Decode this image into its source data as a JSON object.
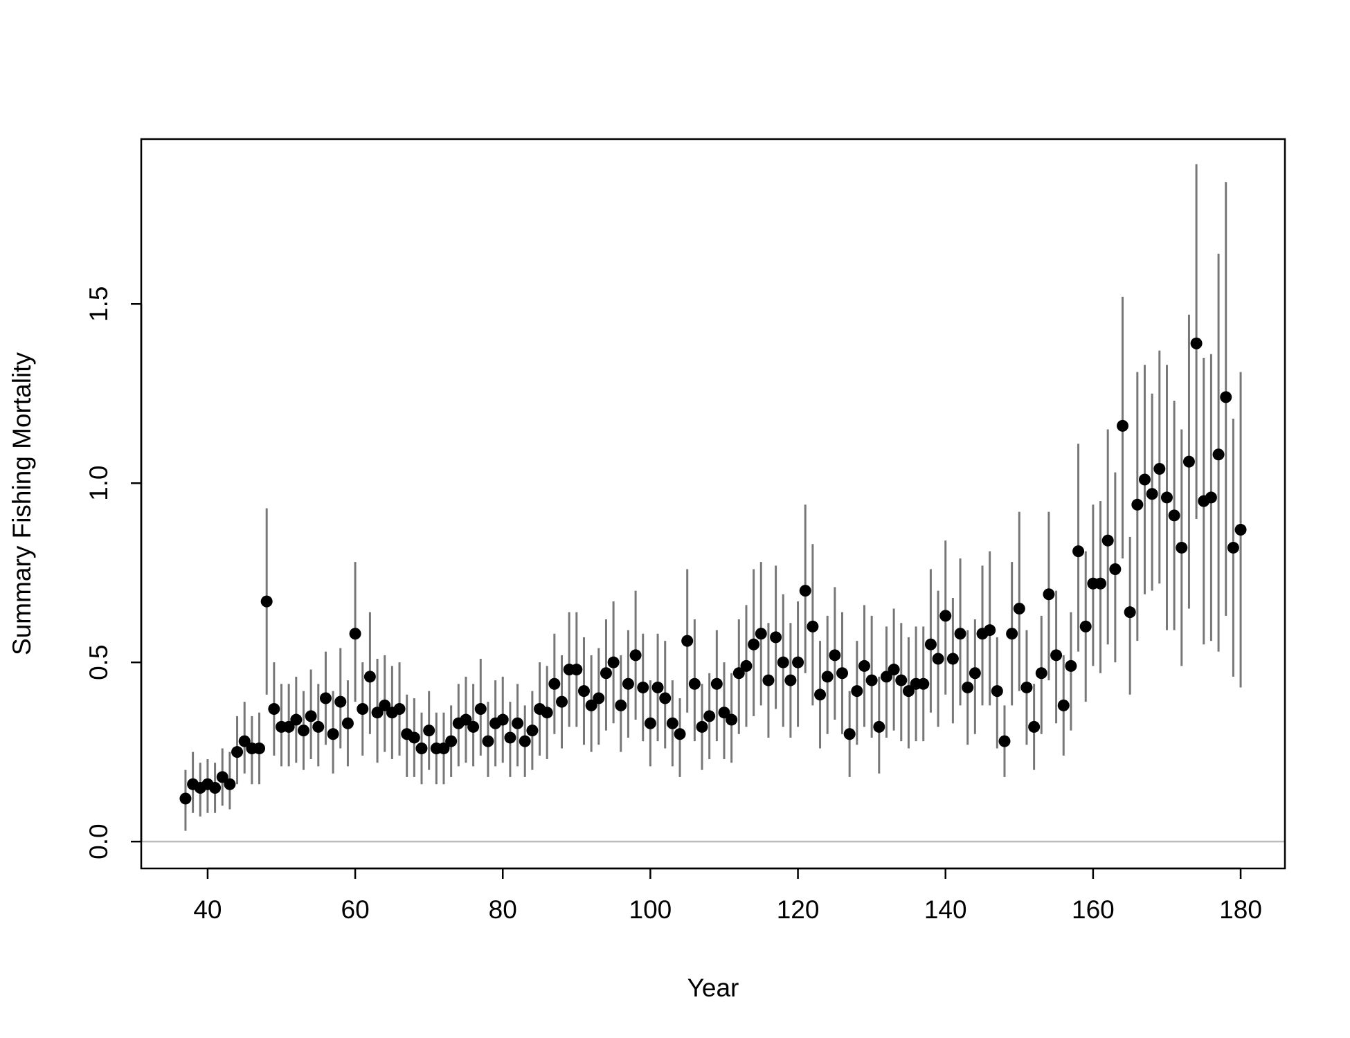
{
  "chart_data": {
    "type": "scatter",
    "title": "",
    "xlabel": "Year",
    "ylabel": "Summary Fishing Mortality",
    "xlim": [
      31,
      186
    ],
    "ylim": [
      -0.075,
      1.96
    ],
    "xticks": [
      40,
      60,
      80,
      100,
      120,
      140,
      160,
      180
    ],
    "yticks": [
      0.0,
      0.5,
      1.0,
      1.5
    ],
    "xtick_labels": [
      "40",
      "60",
      "80",
      "100",
      "120",
      "140",
      "160",
      "180"
    ],
    "ytick_labels": [
      "0.0",
      "0.5",
      "1.0",
      "1.5"
    ],
    "reference_line_y": 0.0,
    "grid": false,
    "legend": "none",
    "colors": {
      "points": "#000000",
      "error_bars": "#777777",
      "reference_line": "#bbbbbb",
      "axes": "#000000"
    },
    "series": [
      {
        "x": [
          37,
          38,
          39,
          40,
          41,
          42,
          43,
          44,
          45,
          46,
          47,
          48,
          49,
          50,
          51,
          52,
          53,
          54,
          55,
          56,
          57,
          58,
          59,
          60,
          61,
          62,
          63,
          64,
          65,
          66,
          67,
          68,
          69,
          70,
          71,
          72,
          73,
          74,
          75,
          76,
          77,
          78,
          79,
          80,
          81,
          82,
          83,
          84,
          85,
          86,
          87,
          88,
          89,
          90,
          91,
          92,
          93,
          94,
          95,
          96,
          97,
          98,
          99,
          100,
          101,
          102,
          103,
          104,
          105,
          106,
          107,
          108,
          109,
          110,
          111,
          112,
          113,
          114,
          115,
          116,
          117,
          118,
          119,
          120,
          121,
          122,
          123,
          124,
          125,
          126,
          127,
          128,
          129,
          130,
          131,
          132,
          133,
          134,
          135,
          136,
          137,
          138,
          139,
          140,
          141,
          142,
          143,
          144,
          145,
          146,
          147,
          148,
          149,
          150,
          151,
          152,
          153,
          154,
          155,
          156,
          157,
          158,
          159,
          160,
          161,
          162,
          163,
          164,
          165,
          166,
          167,
          168,
          169,
          170,
          171,
          172,
          173,
          174,
          175,
          176,
          177,
          178,
          179,
          180
        ],
        "y": [
          0.12,
          0.16,
          0.15,
          0.16,
          0.15,
          0.18,
          0.16,
          0.25,
          0.28,
          0.26,
          0.26,
          0.67,
          0.37,
          0.32,
          0.32,
          0.34,
          0.31,
          0.35,
          0.32,
          0.4,
          0.3,
          0.39,
          0.33,
          0.58,
          0.37,
          0.46,
          0.36,
          0.38,
          0.36,
          0.37,
          0.3,
          0.29,
          0.26,
          0.31,
          0.26,
          0.26,
          0.28,
          0.33,
          0.34,
          0.32,
          0.37,
          0.28,
          0.33,
          0.34,
          0.29,
          0.33,
          0.28,
          0.31,
          0.37,
          0.36,
          0.44,
          0.39,
          0.48,
          0.48,
          0.42,
          0.38,
          0.4,
          0.47,
          0.5,
          0.38,
          0.44,
          0.52,
          0.43,
          0.33,
          0.43,
          0.4,
          0.33,
          0.3,
          0.56,
          0.44,
          0.32,
          0.35,
          0.44,
          0.36,
          0.34,
          0.47,
          0.49,
          0.55,
          0.58,
          0.45,
          0.57,
          0.5,
          0.45,
          0.5,
          0.7,
          0.6,
          0.41,
          0.46,
          0.52,
          0.47,
          0.3,
          0.42,
          0.49,
          0.45,
          0.32,
          0.46,
          0.48,
          0.45,
          0.42,
          0.44,
          0.44,
          0.55,
          0.51,
          0.63,
          0.51,
          0.58,
          0.43,
          0.47,
          0.58,
          0.59,
          0.42,
          0.28,
          0.58,
          0.65,
          0.43,
          0.32,
          0.47,
          0.69,
          0.52,
          0.38,
          0.49,
          0.81,
          0.6,
          0.72,
          0.72,
          0.84,
          0.76,
          1.16,
          0.64,
          0.94,
          1.01,
          0.97,
          1.04,
          0.96,
          0.91,
          0.82,
          1.06,
          1.39,
          0.95,
          0.96,
          1.08,
          1.24,
          0.82,
          0.87
        ],
        "lower": [
          0.03,
          0.08,
          0.07,
          0.08,
          0.08,
          0.1,
          0.09,
          0.16,
          0.19,
          0.16,
          0.16,
          0.41,
          0.24,
          0.21,
          0.21,
          0.22,
          0.2,
          0.23,
          0.21,
          0.27,
          0.19,
          0.26,
          0.21,
          0.39,
          0.24,
          0.3,
          0.22,
          0.25,
          0.23,
          0.24,
          0.18,
          0.18,
          0.16,
          0.2,
          0.16,
          0.16,
          0.18,
          0.21,
          0.22,
          0.21,
          0.24,
          0.18,
          0.21,
          0.22,
          0.18,
          0.21,
          0.18,
          0.2,
          0.24,
          0.23,
          0.3,
          0.26,
          0.32,
          0.32,
          0.27,
          0.25,
          0.27,
          0.31,
          0.33,
          0.25,
          0.29,
          0.34,
          0.28,
          0.21,
          0.28,
          0.26,
          0.21,
          0.18,
          0.36,
          0.28,
          0.2,
          0.23,
          0.28,
          0.23,
          0.22,
          0.3,
          0.32,
          0.35,
          0.38,
          0.29,
          0.37,
          0.32,
          0.29,
          0.32,
          0.47,
          0.38,
          0.26,
          0.3,
          0.34,
          0.3,
          0.18,
          0.27,
          0.32,
          0.29,
          0.19,
          0.29,
          0.31,
          0.28,
          0.26,
          0.28,
          0.28,
          0.36,
          0.32,
          0.41,
          0.33,
          0.38,
          0.27,
          0.3,
          0.38,
          0.38,
          0.26,
          0.18,
          0.38,
          0.42,
          0.27,
          0.2,
          0.3,
          0.45,
          0.33,
          0.24,
          0.31,
          0.53,
          0.39,
          0.49,
          0.47,
          0.55,
          0.5,
          0.79,
          0.41,
          0.56,
          0.69,
          0.7,
          0.72,
          0.59,
          0.59,
          0.49,
          0.65,
          0.9,
          0.55,
          0.56,
          0.53,
          0.63,
          0.46,
          0.43
        ],
        "upper": [
          0.2,
          0.25,
          0.22,
          0.23,
          0.22,
          0.26,
          0.25,
          0.35,
          0.39,
          0.35,
          0.36,
          0.93,
          0.5,
          0.44,
          0.44,
          0.46,
          0.42,
          0.48,
          0.44,
          0.53,
          0.42,
          0.54,
          0.45,
          0.78,
          0.5,
          0.64,
          0.51,
          0.52,
          0.49,
          0.5,
          0.41,
          0.4,
          0.36,
          0.42,
          0.36,
          0.36,
          0.38,
          0.44,
          0.46,
          0.44,
          0.51,
          0.39,
          0.45,
          0.46,
          0.39,
          0.44,
          0.38,
          0.42,
          0.5,
          0.49,
          0.58,
          0.52,
          0.64,
          0.64,
          0.57,
          0.52,
          0.54,
          0.62,
          0.67,
          0.52,
          0.59,
          0.7,
          0.58,
          0.45,
          0.58,
          0.56,
          0.45,
          0.4,
          0.76,
          0.62,
          0.44,
          0.47,
          0.59,
          0.5,
          0.47,
          0.62,
          0.66,
          0.76,
          0.78,
          0.61,
          0.77,
          0.69,
          0.61,
          0.67,
          0.94,
          0.83,
          0.56,
          0.63,
          0.71,
          0.64,
          0.42,
          0.56,
          0.66,
          0.63,
          0.46,
          0.6,
          0.65,
          0.61,
          0.57,
          0.6,
          0.6,
          0.76,
          0.7,
          0.84,
          0.68,
          0.79,
          0.59,
          0.62,
          0.77,
          0.81,
          0.57,
          0.38,
          0.78,
          0.92,
          0.59,
          0.44,
          0.63,
          0.92,
          0.7,
          0.52,
          0.64,
          1.11,
          0.81,
          0.94,
          0.95,
          1.15,
          1.03,
          1.52,
          0.85,
          1.31,
          1.33,
          1.25,
          1.37,
          1.33,
          1.23,
          1.15,
          1.47,
          1.89,
          1.35,
          1.36,
          1.64,
          1.84,
          1.18,
          1.31
        ]
      }
    ]
  }
}
